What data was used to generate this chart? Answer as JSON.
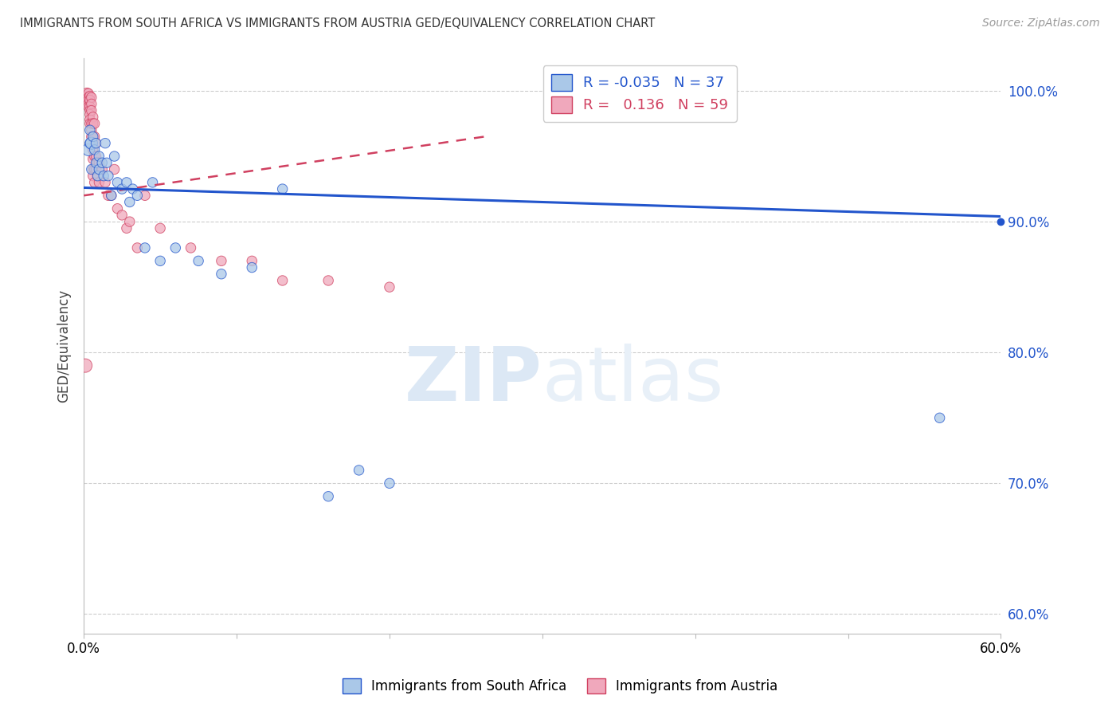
{
  "title": "IMMIGRANTS FROM SOUTH AFRICA VS IMMIGRANTS FROM AUSTRIA GED/EQUIVALENCY CORRELATION CHART",
  "source": "Source: ZipAtlas.com",
  "ylabel": "GED/Equivalency",
  "ytick_labels": [
    "100.0%",
    "90.0%",
    "80.0%",
    "70.0%",
    "60.0%"
  ],
  "ytick_values": [
    1.0,
    0.9,
    0.8,
    0.7,
    0.6
  ],
  "xlim": [
    0.0,
    0.6
  ],
  "ylim": [
    0.585,
    1.025
  ],
  "legend_r_blue": "-0.035",
  "legend_n_blue": "37",
  "legend_r_pink": "0.136",
  "legend_n_pink": "59",
  "blue_color": "#aac8e8",
  "pink_color": "#f0a8bc",
  "trendline_blue_color": "#2255cc",
  "trendline_pink_color": "#d04060",
  "watermark_color": "#dce8f5",
  "blue_x": [
    0.003,
    0.004,
    0.004,
    0.005,
    0.005,
    0.006,
    0.007,
    0.008,
    0.008,
    0.009,
    0.01,
    0.01,
    0.012,
    0.013,
    0.014,
    0.015,
    0.016,
    0.018,
    0.02,
    0.022,
    0.025,
    0.028,
    0.03,
    0.032,
    0.035,
    0.04,
    0.045,
    0.05,
    0.06,
    0.075,
    0.09,
    0.11,
    0.13,
    0.16,
    0.18,
    0.2,
    0.56
  ],
  "blue_y": [
    0.955,
    0.97,
    0.96,
    0.96,
    0.94,
    0.965,
    0.955,
    0.96,
    0.945,
    0.935,
    0.95,
    0.94,
    0.945,
    0.935,
    0.96,
    0.945,
    0.935,
    0.92,
    0.95,
    0.93,
    0.925,
    0.93,
    0.915,
    0.925,
    0.92,
    0.88,
    0.93,
    0.87,
    0.88,
    0.87,
    0.86,
    0.865,
    0.925,
    0.69,
    0.71,
    0.7,
    0.75
  ],
  "blue_sizes": [
    120,
    80,
    80,
    120,
    80,
    80,
    80,
    80,
    80,
    80,
    80,
    80,
    80,
    80,
    80,
    80,
    80,
    80,
    80,
    80,
    80,
    80,
    80,
    80,
    80,
    80,
    80,
    80,
    80,
    80,
    80,
    80,
    80,
    80,
    80,
    80,
    80
  ],
  "pink_x": [
    0.001,
    0.002,
    0.002,
    0.002,
    0.003,
    0.003,
    0.003,
    0.003,
    0.003,
    0.004,
    0.004,
    0.004,
    0.004,
    0.004,
    0.004,
    0.004,
    0.005,
    0.005,
    0.005,
    0.005,
    0.005,
    0.005,
    0.006,
    0.006,
    0.006,
    0.006,
    0.006,
    0.006,
    0.006,
    0.007,
    0.007,
    0.007,
    0.007,
    0.007,
    0.008,
    0.008,
    0.008,
    0.009,
    0.009,
    0.01,
    0.01,
    0.012,
    0.014,
    0.016,
    0.018,
    0.02,
    0.022,
    0.025,
    0.028,
    0.03,
    0.035,
    0.04,
    0.05,
    0.07,
    0.09,
    0.11,
    0.13,
    0.16,
    0.2
  ],
  "pink_y": [
    0.79,
    0.998,
    0.995,
    0.993,
    0.998,
    0.995,
    0.993,
    0.99,
    0.988,
    0.996,
    0.993,
    0.988,
    0.985,
    0.982,
    0.978,
    0.975,
    0.995,
    0.99,
    0.985,
    0.975,
    0.97,
    0.965,
    0.98,
    0.975,
    0.965,
    0.955,
    0.948,
    0.94,
    0.935,
    0.975,
    0.965,
    0.95,
    0.94,
    0.93,
    0.96,
    0.95,
    0.94,
    0.945,
    0.935,
    0.945,
    0.93,
    0.94,
    0.93,
    0.92,
    0.92,
    0.94,
    0.91,
    0.905,
    0.895,
    0.9,
    0.88,
    0.92,
    0.895,
    0.88,
    0.87,
    0.87,
    0.855,
    0.855,
    0.85
  ],
  "pink_sizes": [
    150,
    100,
    100,
    100,
    80,
    80,
    80,
    80,
    80,
    80,
    80,
    80,
    80,
    80,
    80,
    80,
    80,
    80,
    80,
    80,
    80,
    80,
    80,
    80,
    80,
    80,
    80,
    80,
    80,
    80,
    80,
    80,
    80,
    80,
    80,
    80,
    80,
    80,
    80,
    80,
    80,
    80,
    80,
    80,
    80,
    80,
    80,
    80,
    80,
    80,
    80,
    80,
    80,
    80,
    80,
    80,
    80,
    80,
    80
  ],
  "blue_trend_x": [
    0.0,
    0.6
  ],
  "blue_trend_y": [
    0.926,
    0.904
  ],
  "pink_trend_x": [
    0.0,
    0.262
  ],
  "pink_trend_y": [
    0.92,
    0.965
  ]
}
